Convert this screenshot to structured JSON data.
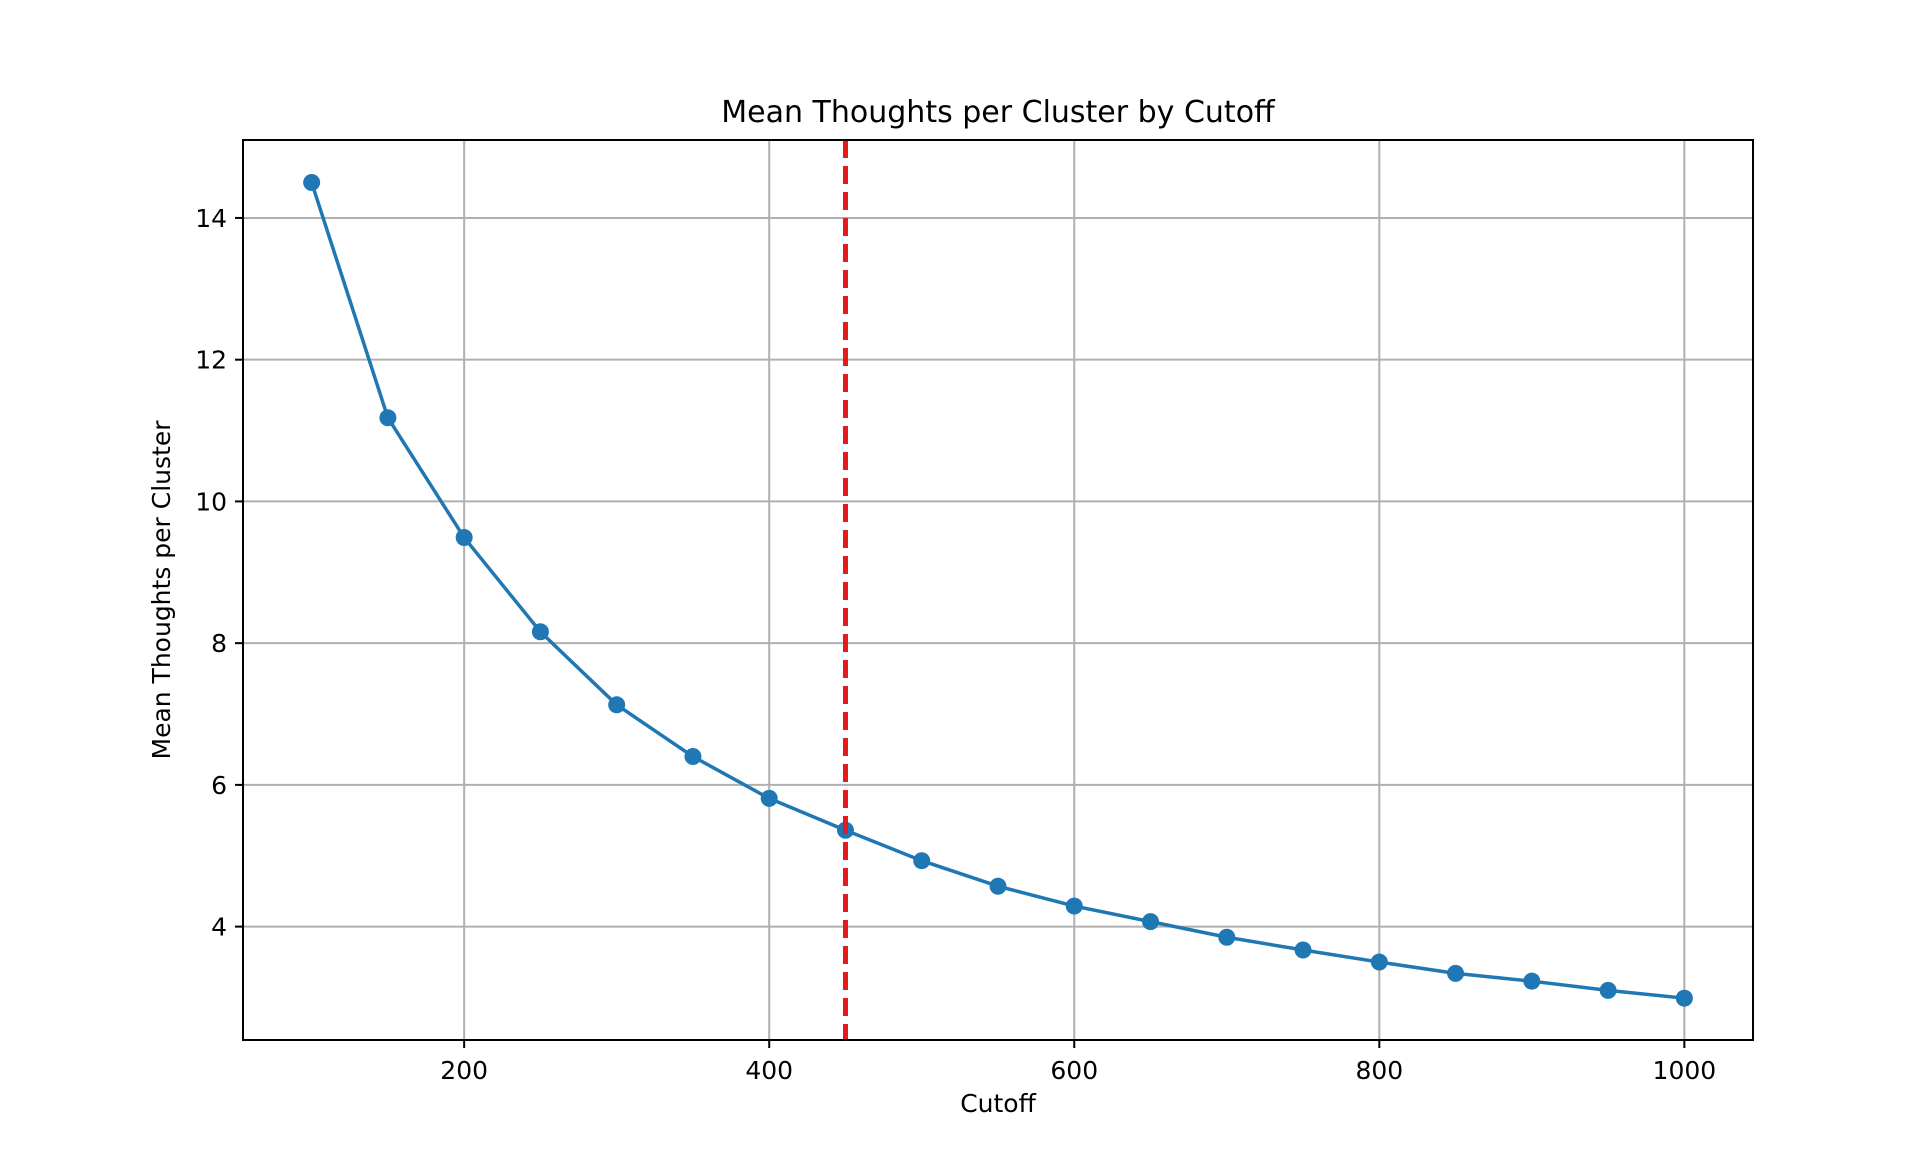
{
  "chart_data": {
    "type": "line",
    "title": "Mean Thoughts per Cluster by Cutoff",
    "xlabel": "Cutoff",
    "ylabel": "Mean Thoughts per Cluster",
    "xlim": [
      55,
      1045
    ],
    "ylim": [
      2.4,
      15.1
    ],
    "xticks": [
      200,
      400,
      600,
      800,
      1000
    ],
    "yticks": [
      4,
      6,
      8,
      10,
      12,
      14
    ],
    "grid": true,
    "series": [
      {
        "color": "#1f77b4",
        "marker": "circle",
        "x": [
          100,
          150,
          200,
          250,
          300,
          350,
          400,
          450,
          500,
          550,
          600,
          650,
          700,
          750,
          800,
          850,
          900,
          950,
          1000
        ],
        "y": [
          14.5,
          11.18,
          9.49,
          8.16,
          7.13,
          6.4,
          5.81,
          5.36,
          4.93,
          4.57,
          4.29,
          4.07,
          3.85,
          3.67,
          3.5,
          3.34,
          3.23,
          3.1,
          2.99
        ]
      }
    ],
    "reference_lines": [
      {
        "orientation": "vertical",
        "x": 450,
        "color": "#e41a1c",
        "style": "dashed"
      }
    ]
  }
}
